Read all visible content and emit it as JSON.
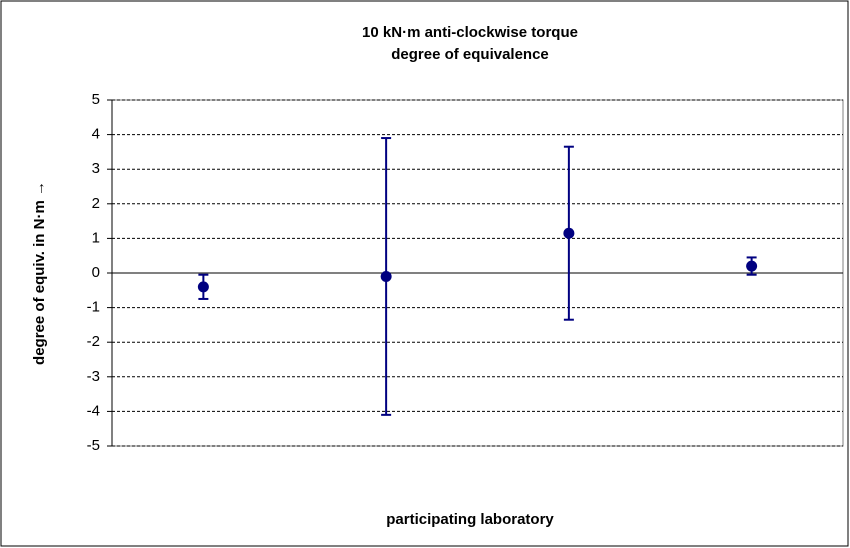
{
  "chart_data": {
    "type": "errorbar",
    "title": "10 kN·m anti-clockwise torque",
    "subtitle": "degree of equivalence",
    "y_label": "degree of equiv. in N·m →",
    "x_label": "participating laboratory",
    "categories": [
      null,
      null,
      null,
      null
    ],
    "values": [
      -0.4,
      -0.1,
      1.15,
      0.2
    ],
    "errors": [
      0.35,
      4.0,
      2.5,
      0.25
    ],
    "color": "#000080",
    "ylim": [
      -5,
      5
    ],
    "yticks": [
      -5,
      -4,
      -3,
      -2,
      -1,
      0,
      1,
      2,
      3,
      4,
      5
    ],
    "grid": true
  }
}
